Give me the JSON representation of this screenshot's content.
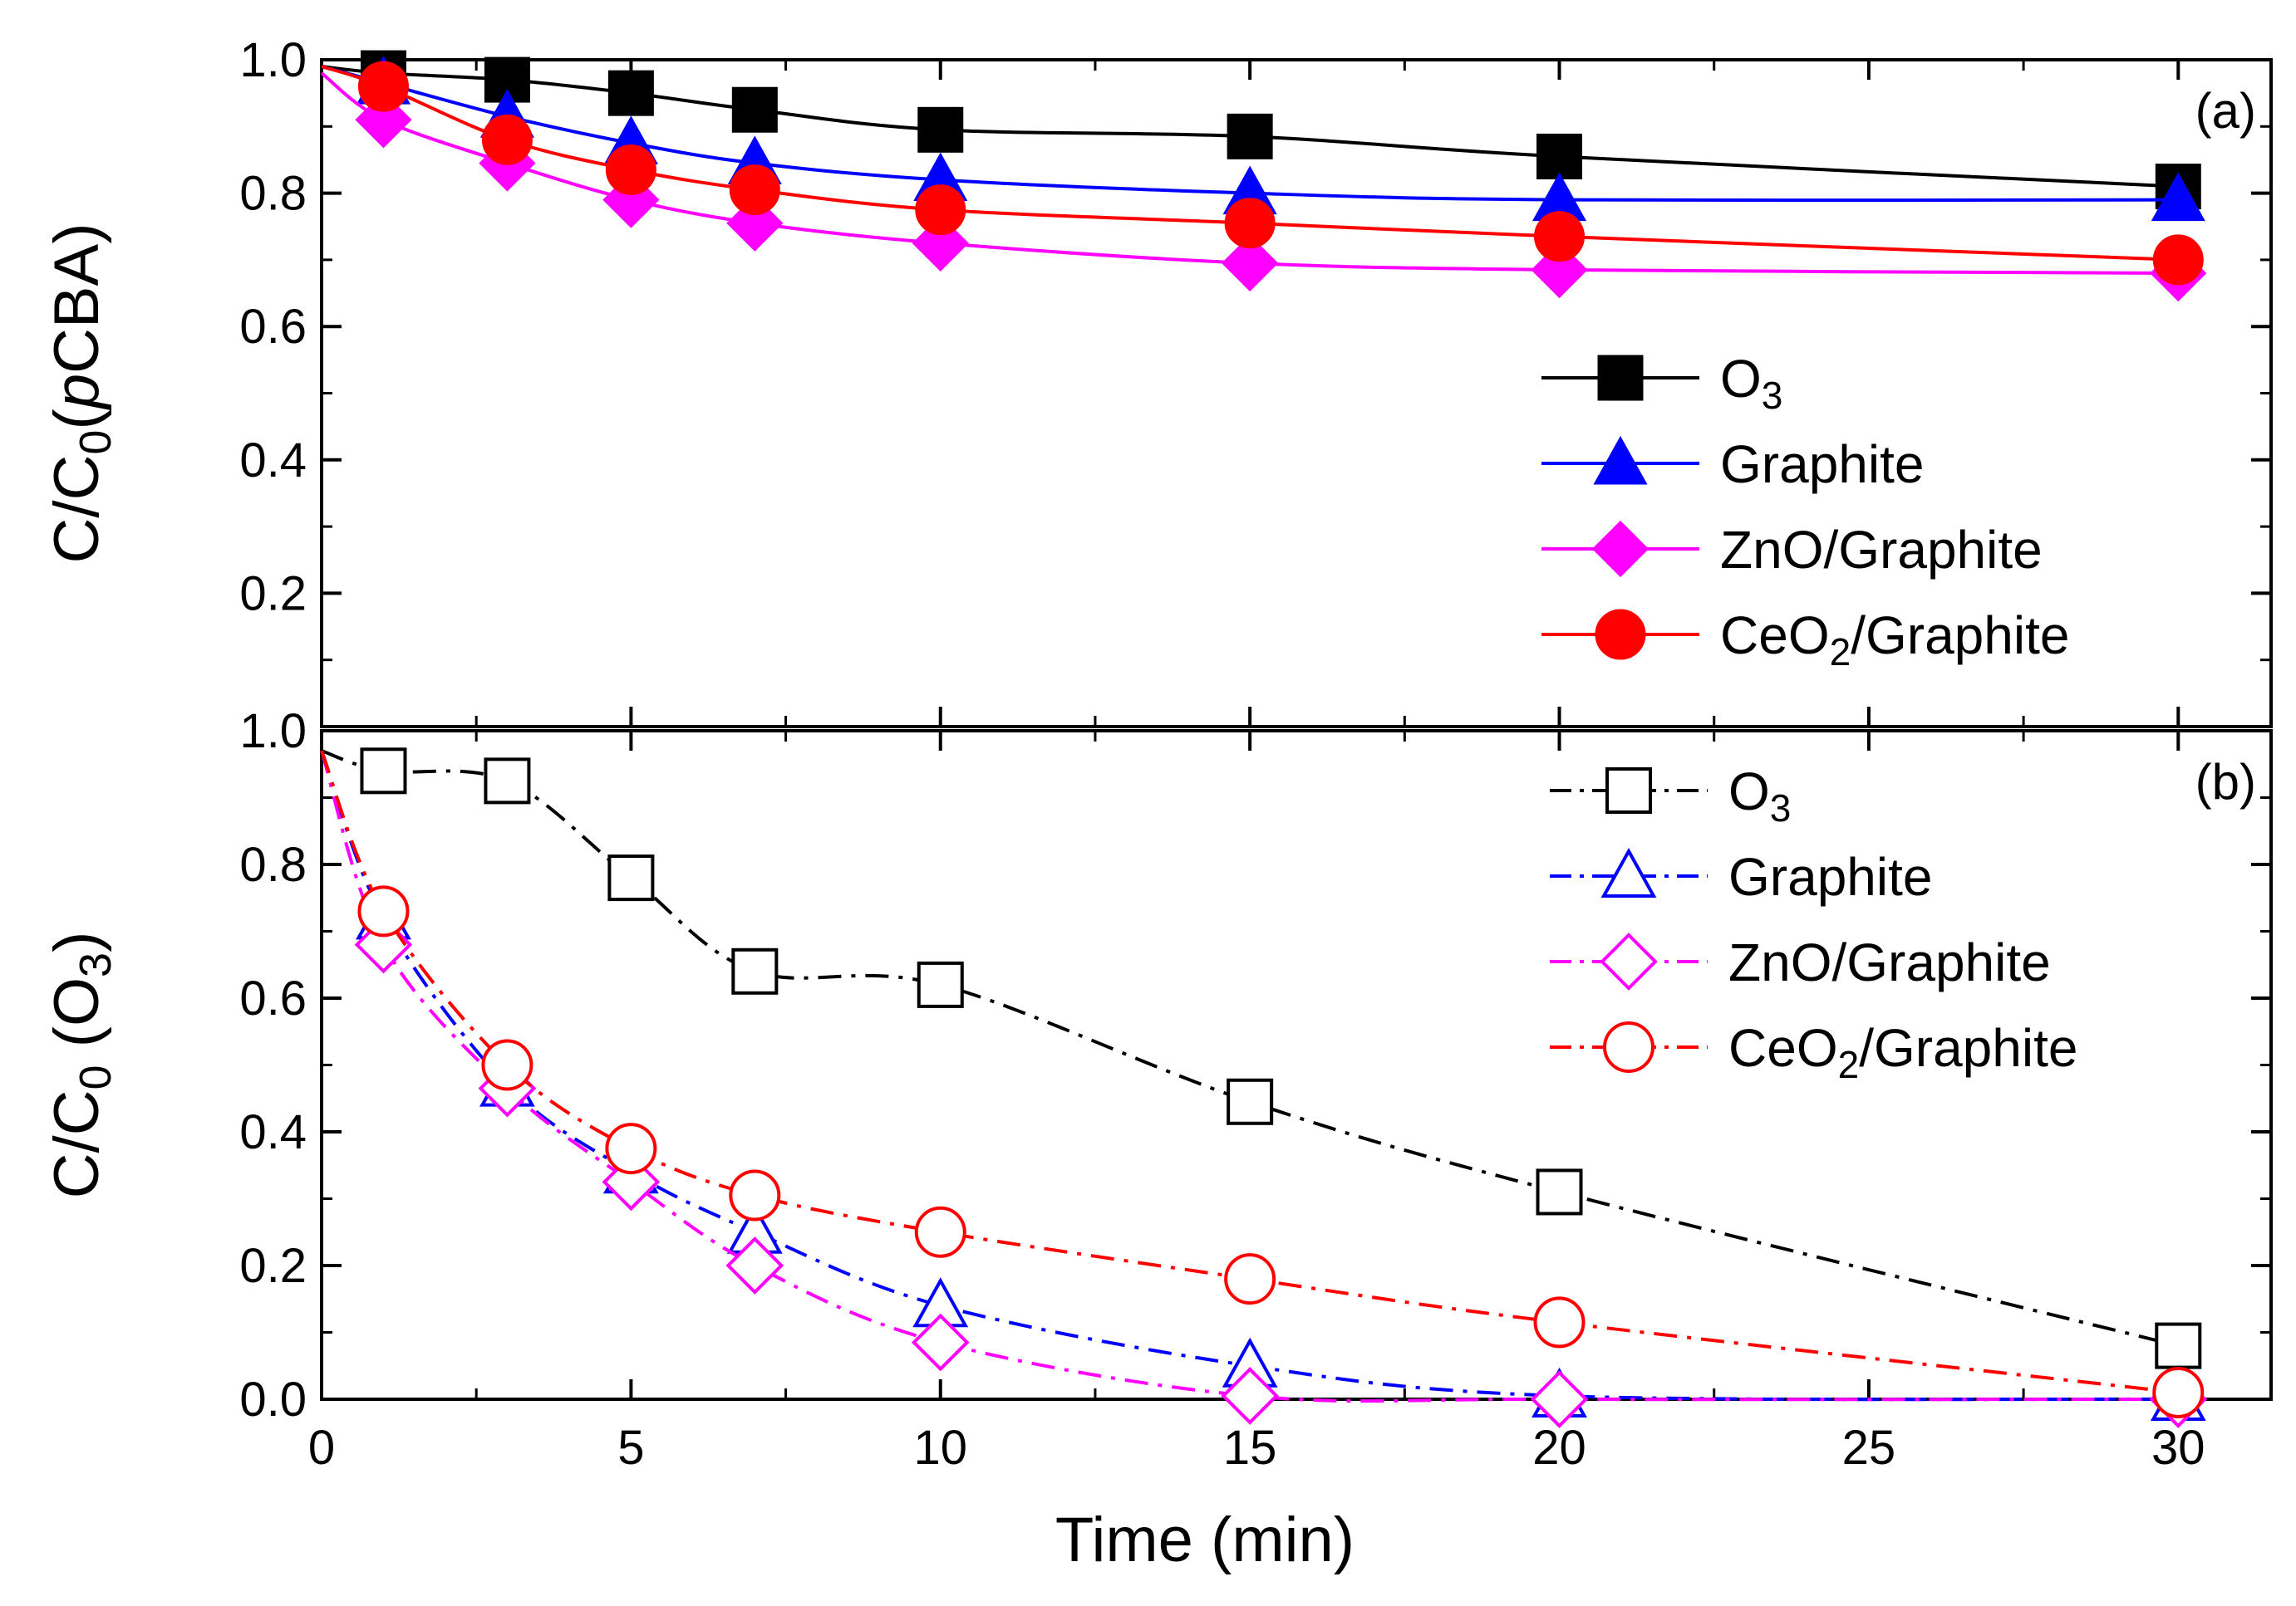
{
  "chart_data": [
    {
      "type": "line",
      "panel": "a",
      "panel_label": "(a)",
      "ylabel": {
        "prefix": "C/C",
        "sub": "0",
        "open": "(",
        "italic": "p",
        "rest": "CBA)"
      },
      "xlabel": "",
      "xlim": [
        0,
        31.5
      ],
      "ylim": [
        0,
        1.0
      ],
      "yticks": [
        0.0,
        0.2,
        0.4,
        0.6,
        0.8,
        1.0
      ],
      "ytick_labels": [
        "",
        "0.2",
        "0.4",
        "0.6",
        "0.8",
        "1.0"
      ],
      "legend_position": "right-center",
      "marker_fill": "filled",
      "line_style": "solid",
      "series": [
        {
          "name": "O",
          "name_sub": "3",
          "color": "#000000",
          "marker": "square",
          "x": [
            0,
            1,
            3,
            5,
            7,
            10,
            15,
            20,
            30
          ],
          "y": [
            0.99,
            0.98,
            0.97,
            0.95,
            0.925,
            0.895,
            0.885,
            0.855,
            0.81
          ]
        },
        {
          "name": "Graphite",
          "name_sub": "",
          "color": "#0000ff",
          "marker": "triangle",
          "x": [
            0,
            1,
            3,
            5,
            7,
            10,
            15,
            20,
            30
          ],
          "y": [
            0.99,
            0.965,
            0.915,
            0.875,
            0.845,
            0.82,
            0.8,
            0.79,
            0.79
          ]
        },
        {
          "name": "ZnO/Graphite",
          "name_sub": "",
          "color": "#ff00ff",
          "marker": "diamond",
          "x": [
            0,
            1,
            3,
            5,
            7,
            10,
            15,
            20,
            30
          ],
          "y": [
            0.98,
            0.91,
            0.845,
            0.79,
            0.755,
            0.725,
            0.695,
            0.685,
            0.68
          ]
        },
        {
          "name": "CeO",
          "name_sub": "2",
          "name_suffix": "/Graphite",
          "color": "#ff0000",
          "marker": "circle",
          "x": [
            0,
            1,
            3,
            5,
            7,
            10,
            15,
            20,
            30
          ],
          "y": [
            0.99,
            0.96,
            0.88,
            0.835,
            0.805,
            0.775,
            0.755,
            0.735,
            0.7
          ]
        }
      ]
    },
    {
      "type": "line",
      "panel": "b",
      "panel_label": "(b)",
      "ylabel": {
        "prefix": "C/C",
        "sub": "0",
        "open": " (O",
        "sub2": "3",
        "close": ")"
      },
      "xlabel": "Time (min)",
      "xlim": [
        0,
        31.5
      ],
      "ylim": [
        0,
        1.0
      ],
      "xticks": [
        0,
        5,
        10,
        15,
        20,
        25,
        30
      ],
      "xtick_labels": [
        "0",
        "5",
        "10",
        "15",
        "20",
        "25",
        "30"
      ],
      "yticks": [
        0.0,
        0.2,
        0.4,
        0.6,
        0.8,
        1.0
      ],
      "ytick_labels": [
        "0.0",
        "0.2",
        "0.4",
        "0.6",
        "0.8",
        "1.0"
      ],
      "legend_position": "top-right",
      "marker_fill": "open",
      "line_style": "dash-dot",
      "series": [
        {
          "name": "O",
          "name_sub": "3",
          "color": "#000000",
          "marker": "square",
          "x": [
            0,
            1,
            3,
            5,
            7,
            10,
            15,
            20,
            30
          ],
          "y": [
            0.97,
            0.94,
            0.925,
            0.78,
            0.64,
            0.62,
            0.445,
            0.31,
            0.08
          ]
        },
        {
          "name": "Graphite",
          "name_sub": "",
          "color": "#0000ff",
          "marker": "triangle",
          "x": [
            0,
            1,
            3,
            5,
            7,
            10,
            15,
            20,
            30
          ],
          "y": [
            0.97,
            0.72,
            0.47,
            0.34,
            0.25,
            0.14,
            0.05,
            0.005,
            0.0
          ]
        },
        {
          "name": "ZnO/Graphite",
          "name_sub": "",
          "color": "#ff00ff",
          "marker": "diamond",
          "x": [
            0,
            1,
            3,
            5,
            7,
            10,
            15,
            20,
            30
          ],
          "y": [
            0.97,
            0.68,
            0.465,
            0.325,
            0.2,
            0.085,
            0.005,
            0.0,
            0.0
          ]
        },
        {
          "name": "CeO",
          "name_sub": "2",
          "name_suffix": "/Graphite",
          "color": "#ff0000",
          "marker": "circle",
          "x": [
            0,
            1,
            3,
            5,
            7,
            10,
            15,
            20,
            30
          ],
          "y": [
            0.97,
            0.73,
            0.5,
            0.375,
            0.305,
            0.25,
            0.18,
            0.115,
            0.01
          ]
        }
      ]
    }
  ]
}
